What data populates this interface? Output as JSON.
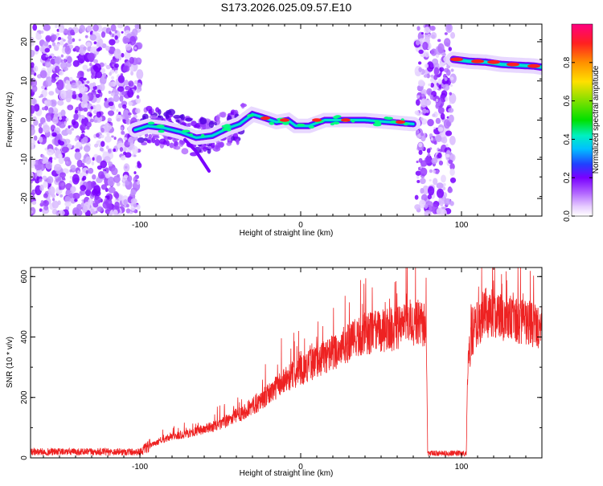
{
  "title": "S173.2026.025.09.57.E10",
  "chart_data": [
    {
      "type": "heatmap",
      "xlabel": "Height of straight line (km)",
      "ylabel": "Frequency (Hz)",
      "xlim": [
        -168,
        150
      ],
      "ylim": [
        -24.5,
        24.5
      ],
      "x_ticks": [
        -100,
        0,
        100
      ],
      "y_ticks": [
        -20,
        -10,
        0,
        10,
        20
      ],
      "x_tick_labels": [
        "-100",
        "0",
        "100"
      ],
      "y_tick_labels": [
        "-20",
        "-10",
        "0",
        "10",
        "20"
      ],
      "colorbar": {
        "label": "Normalized spectral amplitude",
        "range": [
          0,
          1
        ],
        "ticks": [
          0.0,
          0.2,
          0.4,
          0.6,
          0.8
        ],
        "tick_labels": [
          "0.0",
          "0.2",
          "0.4",
          "0.6",
          "0.8"
        ]
      },
      "noise_regions": [
        {
          "x_start": -168,
          "x_end": -100,
          "f_min": -24,
          "f_max": 24
        },
        {
          "x_start": 72,
          "x_end": 95,
          "f_min": -24,
          "f_max": 24
        }
      ],
      "signal_track": [
        {
          "x": -103,
          "f": -2.5
        },
        {
          "x": -95,
          "f": -1.5
        },
        {
          "x": -85,
          "f": -2.0
        },
        {
          "x": -75,
          "f": -3.0
        },
        {
          "x": -65,
          "f": -4.5
        },
        {
          "x": -55,
          "f": -4.0
        },
        {
          "x": -45,
          "f": -2.0
        },
        {
          "x": -38,
          "f": -1.0
        },
        {
          "x": -30,
          "f": 1.5
        },
        {
          "x": -22,
          "f": 0.5
        },
        {
          "x": -15,
          "f": -0.5
        },
        {
          "x": -8,
          "f": 0.0
        },
        {
          "x": -3,
          "f": -1.5
        },
        {
          "x": 5,
          "f": -1.5
        },
        {
          "x": 15,
          "f": 0.0
        },
        {
          "x": 25,
          "f": 0.0
        },
        {
          "x": 40,
          "f": 0.0
        },
        {
          "x": 55,
          "f": -0.5
        },
        {
          "x": 70,
          "f": -1.0
        }
      ],
      "signal_track_2": [
        {
          "x": 95,
          "f": 15.5
        },
        {
          "x": 105,
          "f": 15.0
        },
        {
          "x": 115,
          "f": 14.8
        },
        {
          "x": 125,
          "f": 14.2
        },
        {
          "x": 135,
          "f": 14.0
        },
        {
          "x": 145,
          "f": 13.8
        },
        {
          "x": 150,
          "f": 13.5
        }
      ],
      "spur_track": [
        {
          "x": -72,
          "f": -5
        },
        {
          "x": -65,
          "f": -8
        },
        {
          "x": -57,
          "f": -13
        }
      ]
    },
    {
      "type": "line",
      "xlabel": "Height of straight line (km)",
      "ylabel": "SNR (10 * v/v)",
      "xlim": [
        -168,
        150
      ],
      "ylim": [
        0,
        630
      ],
      "x_ticks": [
        -100,
        0,
        100
      ],
      "y_ticks": [
        0,
        200,
        400,
        600
      ],
      "x_tick_labels": [
        "-100",
        "0",
        "100"
      ],
      "y_tick_labels": [
        "0",
        "200",
        "400",
        "600"
      ],
      "color": "#ee2222",
      "envelope": [
        {
          "x": -168,
          "y": 20
        },
        {
          "x": -100,
          "y": 20
        },
        {
          "x": -92,
          "y": 45
        },
        {
          "x": -80,
          "y": 70
        },
        {
          "x": -70,
          "y": 80
        },
        {
          "x": -60,
          "y": 95
        },
        {
          "x": -50,
          "y": 110
        },
        {
          "x": -40,
          "y": 140
        },
        {
          "x": -30,
          "y": 170
        },
        {
          "x": -20,
          "y": 210
        },
        {
          "x": -10,
          "y": 260
        },
        {
          "x": 0,
          "y": 290
        },
        {
          "x": 10,
          "y": 320
        },
        {
          "x": 20,
          "y": 350
        },
        {
          "x": 30,
          "y": 380
        },
        {
          "x": 40,
          "y": 410
        },
        {
          "x": 50,
          "y": 420
        },
        {
          "x": 60,
          "y": 430
        },
        {
          "x": 70,
          "y": 440
        },
        {
          "x": 78,
          "y": 440
        },
        {
          "x": 79,
          "y": 15
        },
        {
          "x": 103,
          "y": 15
        },
        {
          "x": 104,
          "y": 330
        },
        {
          "x": 108,
          "y": 430
        },
        {
          "x": 115,
          "y": 480
        },
        {
          "x": 125,
          "y": 470
        },
        {
          "x": 135,
          "y": 450
        },
        {
          "x": 145,
          "y": 440
        },
        {
          "x": 150,
          "y": 430
        }
      ]
    }
  ]
}
